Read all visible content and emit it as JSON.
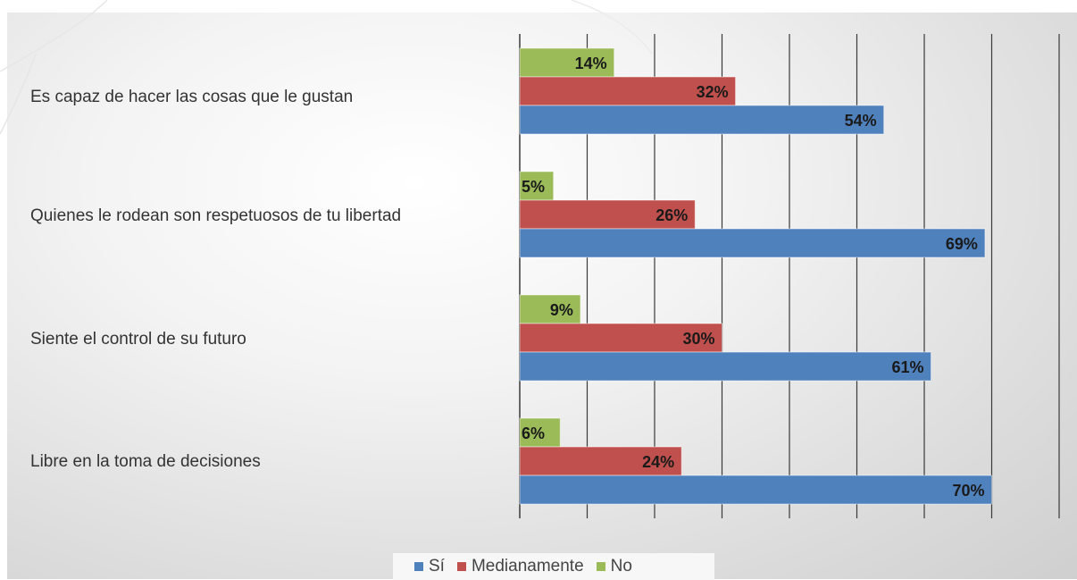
{
  "colors": {
    "si": "#4f81bd",
    "medianamente": "#c0504d",
    "no": "#9bbb59",
    "grid": "#3a3a3a",
    "label_text": "#1a1a1a"
  },
  "legend": {
    "items": [
      {
        "key": "si",
        "label": "Sí",
        "color": "#4f81bd"
      },
      {
        "key": "medianamente",
        "label": "Medianamente",
        "color": "#c0504d"
      },
      {
        "key": "no",
        "label": "No",
        "color": "#9bbb59"
      }
    ]
  },
  "chart_data": {
    "type": "bar",
    "orientation": "horizontal",
    "categories": [
      "Es capaz de hacer las cosas que le gustan",
      "Quienes le rodean son respetuosos de tu libertad",
      "Siente el control de su futuro",
      "Libre en la toma de decisiones"
    ],
    "series": [
      {
        "name": "No",
        "color": "#9bbb59",
        "values": [
          14,
          5,
          9,
          6
        ],
        "labels": [
          "14%",
          "5%",
          "9%",
          "6%"
        ]
      },
      {
        "name": "Medianamente",
        "color": "#c0504d",
        "values": [
          32,
          26,
          30,
          24
        ],
        "labels": [
          "32%",
          "26%",
          "30%",
          "24%"
        ]
      },
      {
        "name": "Sí",
        "color": "#4f81bd",
        "values": [
          54,
          69,
          61,
          70
        ],
        "labels": [
          "54%",
          "69%",
          "61%",
          "70%"
        ]
      }
    ],
    "xlim": [
      0,
      80
    ],
    "grid": true,
    "legend_position": "bottom",
    "title": "",
    "xlabel": "",
    "ylabel": ""
  }
}
